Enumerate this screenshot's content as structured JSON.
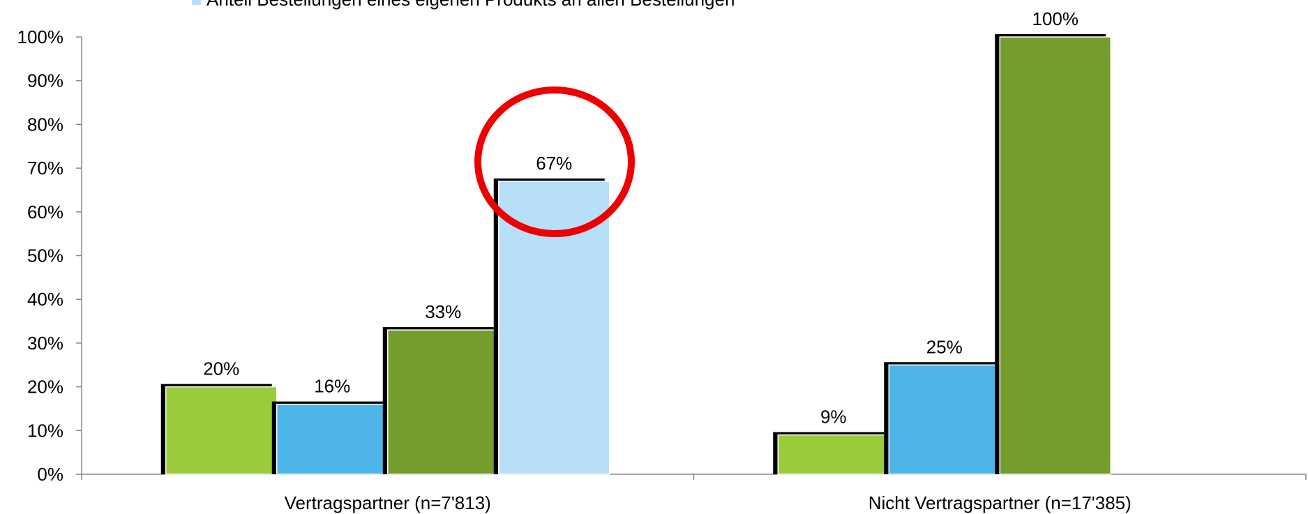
{
  "chart_data": {
    "type": "bar",
    "categories": [
      "Vertragspartner (n=7'813)",
      "Nicht Vertragspartner (n=17'385)"
    ],
    "series": [
      {
        "color": "#9acb3b",
        "values": [
          20,
          9
        ],
        "value_labels": [
          "20%",
          "9%"
        ]
      },
      {
        "color": "#4db5e8",
        "values": [
          16,
          25
        ],
        "value_labels": [
          "16%",
          "25%"
        ]
      },
      {
        "color": "#749d2e",
        "values": [
          33,
          100
        ],
        "value_labels": [
          "33%",
          "100%"
        ]
      },
      {
        "name": "Anteil Bestellungen eines eigenen Produkts an allen Bestellungen",
        "color": "#b7dff8",
        "values": [
          67,
          null
        ],
        "value_labels": [
          "67%",
          null
        ]
      }
    ],
    "ylim": [
      0,
      100
    ],
    "yticks": [
      {
        "value": 0,
        "label": "0%"
      },
      {
        "value": 10,
        "label": "10%"
      },
      {
        "value": 20,
        "label": "20%"
      },
      {
        "value": 30,
        "label": "30%"
      },
      {
        "value": 40,
        "label": "40%"
      },
      {
        "value": 50,
        "label": "50%"
      },
      {
        "value": 60,
        "label": "60%"
      },
      {
        "value": 70,
        "label": "70%"
      },
      {
        "value": 80,
        "label": "80%"
      },
      {
        "value": 90,
        "label": "90%"
      },
      {
        "value": 100,
        "label": "100%"
      }
    ],
    "grid": false
  }
}
